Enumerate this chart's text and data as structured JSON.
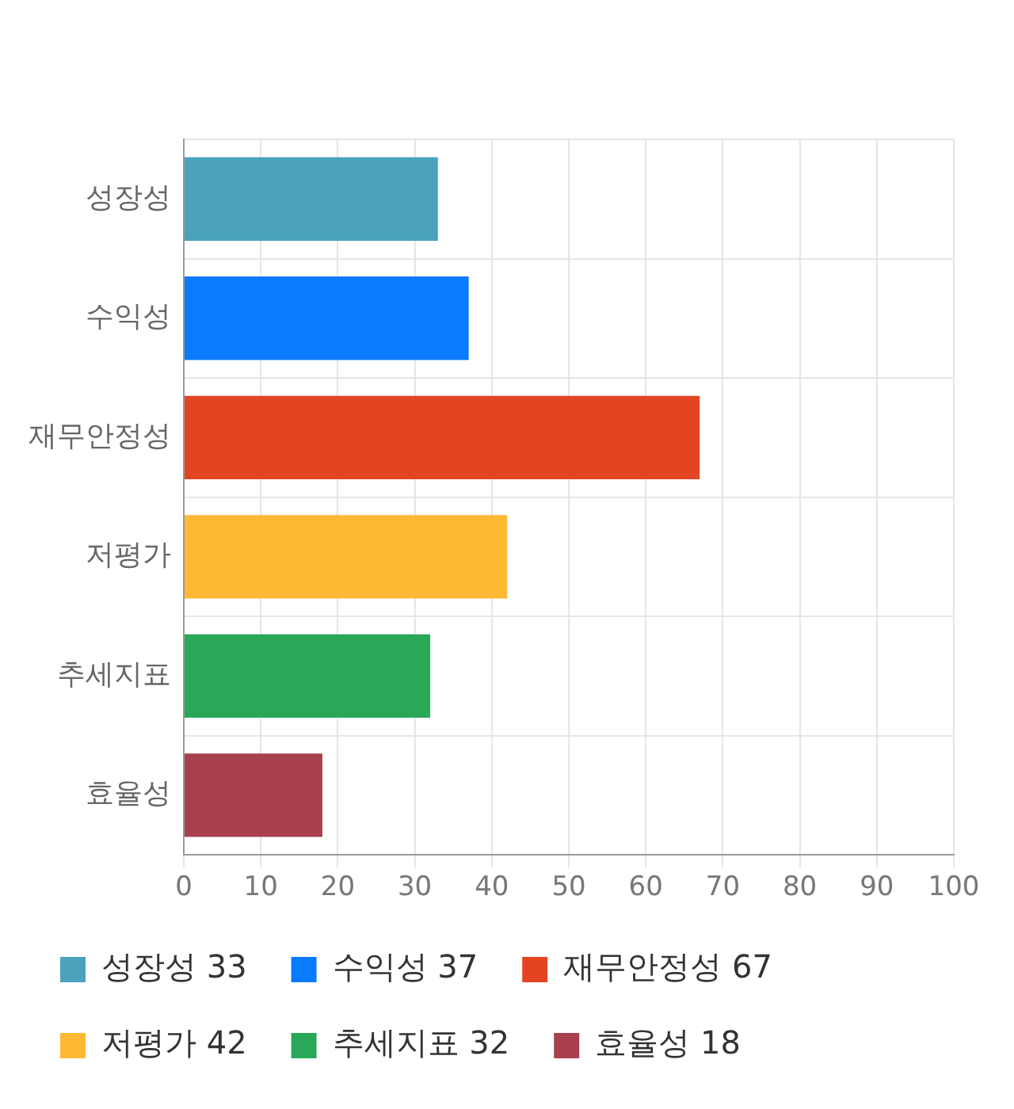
{
  "chart_data": {
    "type": "bar",
    "orientation": "horizontal",
    "stacked": true,
    "categories": [
      "성장성",
      "수익성",
      "재무안정성",
      "저평가",
      "추세지표",
      "효율성"
    ],
    "series": [
      {
        "name": "성장성 33",
        "color": "#4aa2bb",
        "values": [
          33,
          null,
          null,
          null,
          null,
          null
        ]
      },
      {
        "name": "수익성 37",
        "color": "#0a7aff",
        "values": [
          null,
          37,
          null,
          null,
          null,
          null
        ]
      },
      {
        "name": "재무안정성 67",
        "color": "#e34523",
        "values": [
          null,
          null,
          67,
          null,
          null,
          null
        ]
      },
      {
        "name": "저평가 42",
        "color": "#ffb834",
        "values": [
          null,
          null,
          null,
          42,
          null,
          null
        ]
      },
      {
        "name": "추세지표 32",
        "color": "#29a857",
        "values": [
          null,
          null,
          null,
          null,
          32,
          null
        ]
      },
      {
        "name": "효율성 18",
        "color": "#a8404e",
        "values": [
          null,
          null,
          null,
          null,
          null,
          18
        ]
      }
    ],
    "xlim": [
      0,
      100
    ],
    "xticks": [
      0,
      10,
      20,
      30,
      40,
      50,
      60,
      70,
      80,
      90,
      100
    ],
    "grid": true,
    "legend": "bottom"
  }
}
